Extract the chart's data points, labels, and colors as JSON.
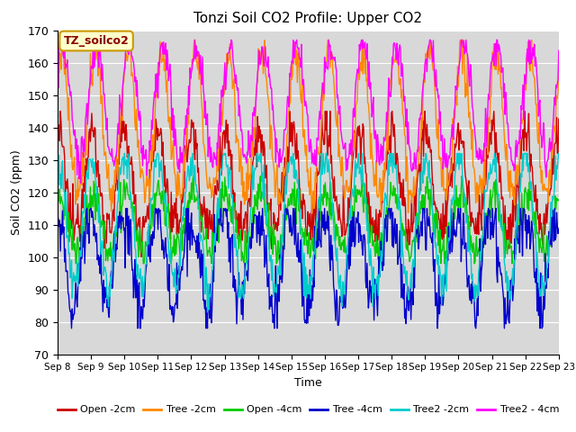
{
  "title": "Tonzi Soil CO2 Profile: Upper CO2",
  "ylabel": "Soil CO2 (ppm)",
  "xlabel": "Time",
  "legend_label": "TZ_soilco2",
  "ylim": [
    70,
    170
  ],
  "yticks": [
    70,
    80,
    90,
    100,
    110,
    120,
    130,
    140,
    150,
    160,
    170
  ],
  "xtick_labels": [
    "Sep 8",
    "Sep 9",
    "Sep 10",
    "Sep 11",
    "Sep 12",
    "Sep 13",
    "Sep 14",
    "Sep 15",
    "Sep 16",
    "Sep 17",
    "Sep 18",
    "Sep 19",
    "Sep 20",
    "Sep 21",
    "Sep 22",
    "Sep 23"
  ],
  "series": [
    {
      "label": "Open -2cm",
      "color": "#cc0000"
    },
    {
      "label": "Tree -2cm",
      "color": "#ff8800"
    },
    {
      "label": "Open -4cm",
      "color": "#00cc00"
    },
    {
      "label": "Tree -4cm",
      "color": "#0000cc"
    },
    {
      "label": "Tree2 -2cm",
      "color": "#00cccc"
    },
    {
      "label": "Tree2 - 4cm",
      "color": "#ff00ff"
    }
  ],
  "bg_color": "#d8d8d8",
  "fig_color": "#ffffff",
  "grid_color": "#ffffff",
  "n_points": 720,
  "n_days": 15
}
